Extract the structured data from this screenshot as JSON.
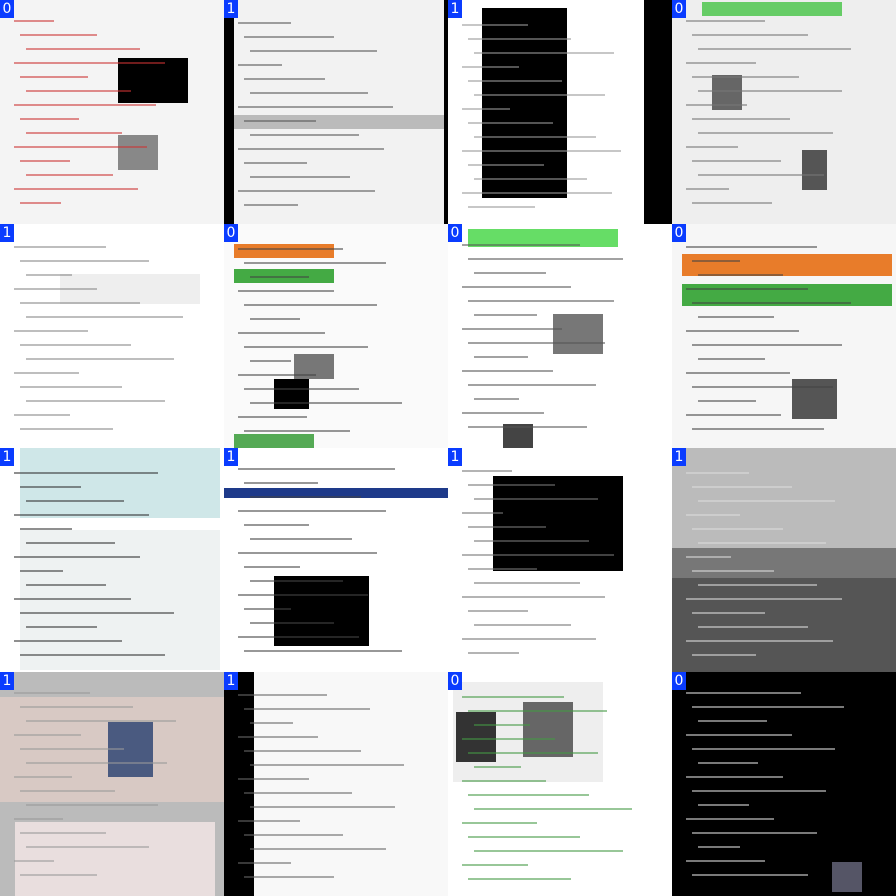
{
  "tiles": [
    {
      "label": 0
    },
    {
      "label": 1
    },
    {
      "label": 1
    },
    {
      "label": 0
    },
    {
      "label": 1
    },
    {
      "label": 0
    },
    {
      "label": 0
    },
    {
      "label": 0
    },
    {
      "label": 1
    },
    {
      "label": 1
    },
    {
      "label": 1
    },
    {
      "label": 1
    },
    {
      "label": 1
    },
    {
      "label": 1
    },
    {
      "label": 0
    },
    {
      "label": 0
    }
  ]
}
